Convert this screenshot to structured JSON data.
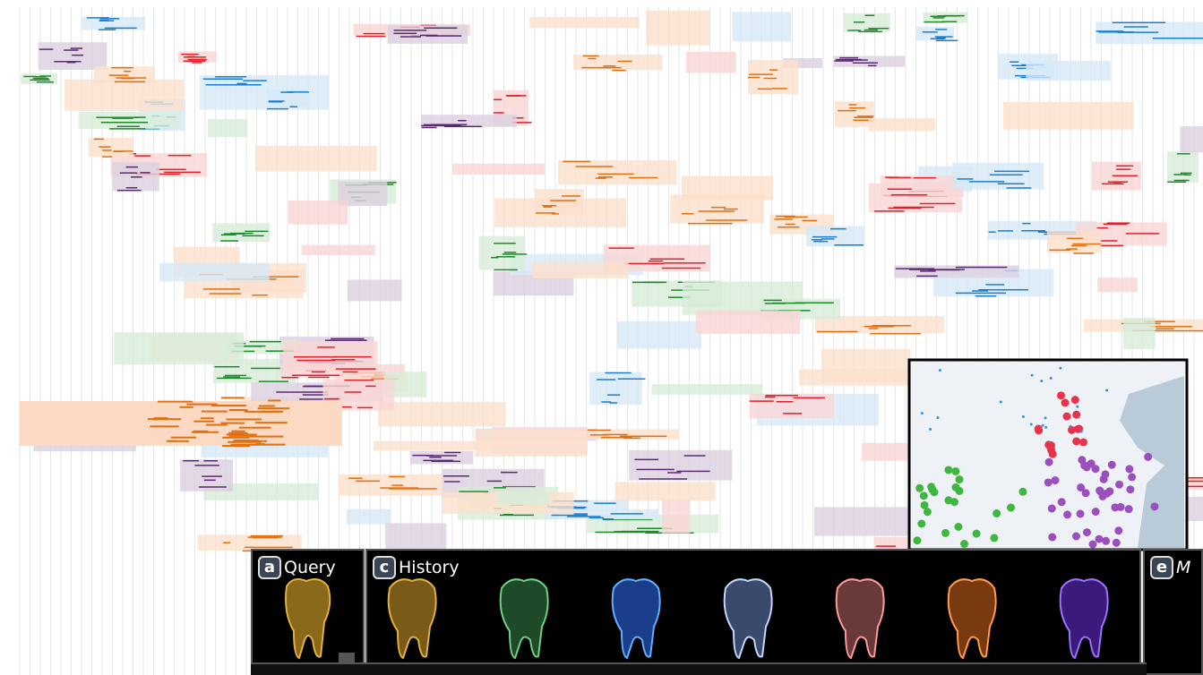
{
  "panels": [
    {
      "badge": "a",
      "title": "Query"
    },
    {
      "badge": "c",
      "title": "History"
    },
    {
      "badge": "e",
      "title": "M"
    }
  ]
}
